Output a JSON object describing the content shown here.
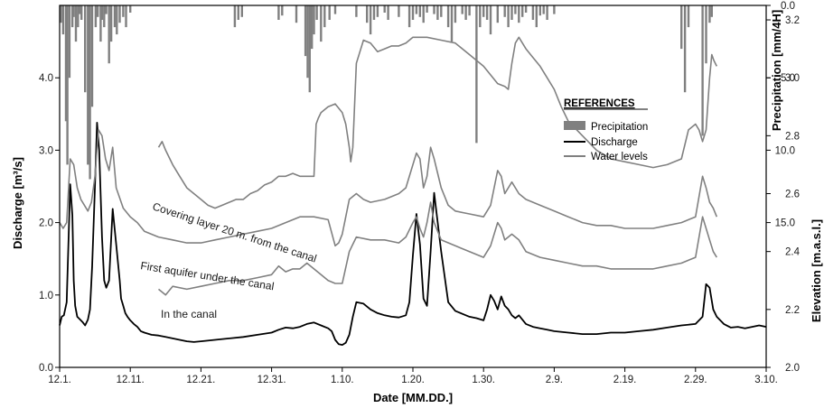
{
  "chart_data": {
    "type": "line",
    "xlabel": "Date [MM.DD.]",
    "x_ticks": [
      "12.1.",
      "12.11.",
      "12.21.",
      "12.31.",
      "1.10.",
      "1.20.",
      "1.30.",
      "2.9.",
      "2.19.",
      "2.29.",
      "3.10."
    ],
    "x_range_days": [
      0,
      100
    ],
    "y_left": {
      "label": "Discharge [m³/s]",
      "ticks": [
        "0.0",
        "1.0",
        "2.0",
        "3.0",
        "4.0"
      ],
      "range": [
        0,
        5
      ]
    },
    "y_right_precip": {
      "label": "Precipitation [mm/4H]",
      "ticks": [
        "0.0",
        "5.0",
        "10.0",
        "15.0"
      ],
      "range_inverted": [
        0,
        25
      ]
    },
    "y_right_elev": {
      "label": "Elevation [m.a.s.l.]",
      "ticks": [
        "2.0",
        "2.2",
        "2.4",
        "2.6",
        "2.8",
        "3.0",
        "3.2"
      ],
      "range": [
        2.0,
        3.25
      ]
    },
    "legend": {
      "title": "REFERENCES",
      "items": [
        {
          "label": "Precipitation",
          "color": "#808080",
          "kind": "bar"
        },
        {
          "label": "Discharge",
          "color": "#000000",
          "kind": "line"
        },
        {
          "label": "Water levels",
          "color": "#808080",
          "kind": "line"
        }
      ]
    },
    "annotations": {
      "covering": "Covering layer  20 m. from the canal",
      "first": "First aquifer  under  the canal",
      "canal": "In the canal"
    },
    "precipitation": {
      "x": [
        0.2,
        0.5,
        0.9,
        1.1,
        1.4,
        1.8,
        2.0,
        2.3,
        2.6,
        2.9,
        3.1,
        3.6,
        4.0,
        4.3,
        4.6,
        5.1,
        5.4,
        5.8,
        6.0,
        6.3,
        6.6,
        7.0,
        7.3,
        7.8,
        8.1,
        8.5,
        9.0,
        9.4,
        10.0,
        24.8,
        25.3,
        25.8,
        31.0,
        31.5,
        33.5,
        34.8,
        35.1,
        35.4,
        35.7,
        36.0,
        36.4,
        37.0,
        37.5,
        38.2,
        39.0,
        42.0,
        43.5,
        44.0,
        44.5,
        45.0,
        46.0,
        46.5,
        48.0,
        49.5,
        50.0,
        50.5,
        51.0,
        51.5,
        52.0,
        53.0,
        53.5,
        54.0,
        55.0,
        55.5,
        56.0,
        57.0,
        57.5,
        58.0,
        59.0,
        59.5,
        60.0,
        60.5,
        61.0,
        62.0,
        63.0,
        63.5,
        64.0,
        64.5,
        65.0,
        65.5,
        66.0,
        67.0,
        67.5,
        68.0,
        68.5,
        69.0,
        70.0,
        88.0,
        88.5,
        89.0,
        91.0,
        91.5,
        92.0,
        92.3
      ],
      "mm": [
        1.2,
        2.0,
        8.0,
        11.0,
        5.0,
        1.5,
        0.8,
        2.5,
        1.5,
        0.6,
        1.0,
        6.0,
        11.0,
        12.0,
        7.0,
        1.5,
        0.8,
        2.5,
        1.0,
        1.5,
        0.6,
        4.0,
        2.5,
        1.5,
        2.0,
        1.2,
        0.8,
        1.5,
        0.5,
        1.5,
        1.0,
        0.8,
        1.0,
        0.7,
        1.2,
        3.5,
        5.0,
        6.0,
        3.0,
        2.0,
        1.0,
        2.5,
        1.5,
        1.0,
        0.6,
        0.8,
        1.2,
        2.0,
        1.0,
        0.8,
        0.5,
        1.0,
        0.8,
        1.5,
        1.0,
        0.6,
        0.8,
        1.2,
        0.5,
        0.6,
        1.0,
        0.8,
        1.5,
        2.5,
        1.2,
        0.6,
        1.0,
        0.7,
        9.5,
        1.5,
        0.8,
        1.0,
        2.0,
        1.2,
        0.8,
        1.5,
        1.0,
        0.6,
        1.2,
        0.8,
        0.5,
        1.0,
        1.5,
        0.7,
        0.6,
        1.0,
        0.6,
        3.0,
        6.0,
        1.5,
        9.0,
        4.0,
        1.2,
        0.8
      ]
    },
    "series": [
      {
        "name": "Discharge",
        "axis": "left",
        "color": "#000000",
        "x": [
          0,
          0.3,
          0.6,
          1.0,
          1.5,
          1.8,
          2.0,
          2.2,
          2.5,
          3.0,
          3.3,
          3.6,
          4.0,
          4.3,
          4.6,
          5.0,
          5.3,
          5.6,
          6.0,
          6.3,
          6.6,
          7.0,
          7.5,
          8.0,
          8.5,
          8.7,
          9.0,
          9.3,
          9.6,
          10.0,
          10.5,
          11.0,
          11.5,
          12.0,
          13.0,
          14.0,
          15.0,
          16.0,
          17.0,
          18.0,
          19.0,
          20.0,
          22.0,
          24.0,
          26.0,
          28.0,
          30.0,
          31.0,
          32.0,
          33.0,
          34.0,
          35.0,
          36.0,
          37.0,
          38.0,
          38.5,
          39.0,
          39.5,
          40.0,
          40.5,
          41.0,
          41.5,
          42.0,
          43.0,
          44.0,
          45.0,
          46.0,
          47.0,
          48.0,
          49.0,
          49.5,
          50.0,
          50.5,
          51.0,
          51.5,
          52.0,
          52.5,
          53.0,
          54.0,
          55.0,
          56.0,
          57.0,
          58.0,
          59.0,
          60.0,
          60.5,
          61.0,
          61.5,
          62.0,
          62.5,
          63.0,
          63.5,
          64.0,
          64.5,
          65.0,
          66.0,
          67.0,
          68.0,
          69.0,
          70.0,
          72.0,
          74.0,
          76.0,
          78.0,
          80.0,
          82.0,
          84.0,
          86.0,
          88.0,
          90.0,
          91.0,
          91.5,
          92.0,
          92.5,
          93.0,
          93.5,
          94.0,
          95.0,
          96.0,
          97.0,
          98.0,
          99.0,
          100.0
        ],
        "y": [
          0.58,
          0.7,
          0.72,
          0.9,
          2.53,
          2.1,
          1.2,
          0.85,
          0.7,
          0.65,
          0.62,
          0.58,
          0.66,
          0.8,
          1.4,
          2.5,
          3.38,
          3.0,
          1.8,
          1.2,
          1.1,
          1.2,
          2.19,
          1.7,
          1.2,
          0.95,
          0.85,
          0.75,
          0.7,
          0.65,
          0.6,
          0.56,
          0.5,
          0.48,
          0.45,
          0.44,
          0.42,
          0.4,
          0.38,
          0.36,
          0.35,
          0.36,
          0.38,
          0.4,
          0.42,
          0.45,
          0.48,
          0.52,
          0.55,
          0.54,
          0.56,
          0.6,
          0.62,
          0.58,
          0.54,
          0.5,
          0.38,
          0.32,
          0.31,
          0.34,
          0.45,
          0.7,
          0.9,
          0.88,
          0.8,
          0.75,
          0.72,
          0.7,
          0.69,
          0.72,
          0.9,
          1.55,
          2.12,
          1.7,
          0.95,
          0.85,
          1.6,
          2.41,
          1.6,
          0.9,
          0.78,
          0.74,
          0.7,
          0.68,
          0.65,
          0.8,
          1.0,
          0.92,
          0.8,
          0.98,
          0.85,
          0.8,
          0.72,
          0.68,
          0.72,
          0.6,
          0.56,
          0.54,
          0.52,
          0.5,
          0.48,
          0.46,
          0.46,
          0.48,
          0.48,
          0.5,
          0.52,
          0.55,
          0.58,
          0.6,
          0.7,
          1.15,
          1.1,
          0.8,
          0.7,
          0.65,
          0.6,
          0.55,
          0.56,
          0.54,
          0.56,
          0.58,
          0.56
        ]
      },
      {
        "name": "Covering layer 20 m. from the canal",
        "axis": "right",
        "color": "#808080",
        "x": [
          14.0,
          14.5,
          15.0,
          16.0,
          17.0,
          18.0,
          19.0,
          20.0,
          21.0,
          22.0,
          23.0,
          24.0,
          25.0,
          26.0,
          27.0,
          28.0,
          29.0,
          30.0,
          31.0,
          32.0,
          33.0,
          34.0,
          35.0,
          36.0,
          36.3,
          36.6,
          37.0,
          38.0,
          39.0,
          40.0,
          40.5,
          41.0,
          41.2,
          41.5,
          42.0,
          43.0,
          44.0,
          45.0,
          46.0,
          47.0,
          48.0,
          49.0,
          50.0,
          52.0,
          54.0,
          56.0,
          58.0,
          60.0,
          61.0,
          62.0,
          63.0,
          63.5,
          64.0,
          64.5,
          65.0,
          66.0,
          67.0,
          68.0,
          69.0,
          70.0,
          71.0,
          72.0,
          74.0,
          76.0,
          78.0,
          80.0,
          82.0,
          84.0,
          86.0,
          88.0,
          89.0,
          90.0,
          90.5,
          91.0,
          91.5,
          92.0,
          92.3,
          92.6,
          93.0
        ],
        "y": [
          2.76,
          2.78,
          2.75,
          2.7,
          2.66,
          2.62,
          2.6,
          2.58,
          2.56,
          2.55,
          2.56,
          2.57,
          2.58,
          2.58,
          2.6,
          2.61,
          2.63,
          2.64,
          2.66,
          2.66,
          2.67,
          2.66,
          2.66,
          2.66,
          2.84,
          2.86,
          2.88,
          2.9,
          2.91,
          2.88,
          2.84,
          2.76,
          2.71,
          2.76,
          3.05,
          3.13,
          3.12,
          3.09,
          3.1,
          3.11,
          3.11,
          3.12,
          3.14,
          3.14,
          3.13,
          3.12,
          3.08,
          3.04,
          3.01,
          2.98,
          2.97,
          2.96,
          3.05,
          3.12,
          3.14,
          3.1,
          3.07,
          3.04,
          3.0,
          2.96,
          2.9,
          2.85,
          2.8,
          2.75,
          2.72,
          2.71,
          2.7,
          2.69,
          2.7,
          2.72,
          2.82,
          2.84,
          2.82,
          2.78,
          2.82,
          3.0,
          3.08,
          3.06,
          3.04
        ]
      },
      {
        "name": "First aquifer under the canal",
        "axis": "right",
        "color": "#808080",
        "x": [
          0,
          0.5,
          1.0,
          1.5,
          2.0,
          2.5,
          3.0,
          4.0,
          4.5,
          5.0,
          5.5,
          6.0,
          6.5,
          7.0,
          7.5,
          8.0,
          9.0,
          10.0,
          11.0,
          12.0,
          14.0,
          16.0,
          18.0,
          20.0,
          22.0,
          24.0,
          26.0,
          28.0,
          30.0,
          32.0,
          34.0,
          36.0,
          38.0,
          39.0,
          39.5,
          40.0,
          41.0,
          42.0,
          43.0,
          44.0,
          46.0,
          48.0,
          49.0,
          50.0,
          50.5,
          51.0,
          51.5,
          52.0,
          52.5,
          53.0,
          54.0,
          55.0,
          56.0,
          58.0,
          60.0,
          61.0,
          62.0,
          62.5,
          63.0,
          64.0,
          65.0,
          66.0,
          68.0,
          70.0,
          72.0,
          74.0,
          76.0,
          78.0,
          80.0,
          82.0,
          84.0,
          86.0,
          88.0,
          90.0,
          91.0,
          91.5,
          92.0,
          92.5,
          93.0
        ],
        "y": [
          2.5,
          2.48,
          2.5,
          2.72,
          2.7,
          2.62,
          2.58,
          2.54,
          2.57,
          2.66,
          2.82,
          2.8,
          2.72,
          2.68,
          2.76,
          2.62,
          2.55,
          2.52,
          2.5,
          2.47,
          2.45,
          2.44,
          2.43,
          2.43,
          2.44,
          2.45,
          2.46,
          2.47,
          2.48,
          2.5,
          2.52,
          2.52,
          2.51,
          2.42,
          2.43,
          2.46,
          2.58,
          2.6,
          2.58,
          2.57,
          2.58,
          2.6,
          2.62,
          2.7,
          2.74,
          2.72,
          2.62,
          2.66,
          2.76,
          2.72,
          2.62,
          2.56,
          2.54,
          2.53,
          2.52,
          2.56,
          2.68,
          2.66,
          2.6,
          2.64,
          2.6,
          2.58,
          2.56,
          2.54,
          2.52,
          2.5,
          2.49,
          2.49,
          2.48,
          2.48,
          2.48,
          2.49,
          2.5,
          2.52,
          2.66,
          2.62,
          2.57,
          2.55,
          2.52
        ]
      },
      {
        "name": "In the canal",
        "axis": "right",
        "color": "#808080",
        "x": [
          14.0,
          15.0,
          16.0,
          18.0,
          20.0,
          22.0,
          24.0,
          26.0,
          28.0,
          30.0,
          31.0,
          32.0,
          33.0,
          34.0,
          35.0,
          36.0,
          37.0,
          38.0,
          39.0,
          40.0,
          41.0,
          42.0,
          44.0,
          46.0,
          48.0,
          49.0,
          50.0,
          50.5,
          51.0,
          51.5,
          52.0,
          52.5,
          53.0,
          54.0,
          56.0,
          58.0,
          60.0,
          61.0,
          62.0,
          62.5,
          63.0,
          64.0,
          65.0,
          66.0,
          68.0,
          70.0,
          72.0,
          74.0,
          76.0,
          78.0,
          80.0,
          82.0,
          84.0,
          86.0,
          88.0,
          90.0,
          91.0,
          91.5,
          92.0,
          92.5,
          93.0
        ],
        "y": [
          2.27,
          2.25,
          2.28,
          2.27,
          2.28,
          2.29,
          2.3,
          2.3,
          2.31,
          2.32,
          2.35,
          2.33,
          2.34,
          2.34,
          2.36,
          2.34,
          2.32,
          2.3,
          2.29,
          2.29,
          2.4,
          2.45,
          2.44,
          2.44,
          2.43,
          2.45,
          2.5,
          2.52,
          2.48,
          2.45,
          2.5,
          2.57,
          2.5,
          2.44,
          2.42,
          2.4,
          2.38,
          2.42,
          2.5,
          2.48,
          2.44,
          2.46,
          2.44,
          2.4,
          2.38,
          2.37,
          2.36,
          2.35,
          2.35,
          2.34,
          2.34,
          2.34,
          2.34,
          2.35,
          2.36,
          2.38,
          2.52,
          2.48,
          2.44,
          2.4,
          2.38
        ]
      }
    ]
  }
}
